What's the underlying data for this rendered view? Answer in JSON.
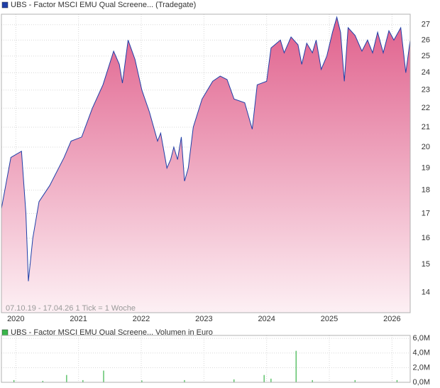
{
  "chart_data": [
    {
      "type": "line",
      "log_scale": true,
      "grid": true,
      "series": [
        {
          "name": "UBS - Factor MSCI EMU Qual Screene... (Tradegate)",
          "color": "#1f3fa8",
          "values": [
            17.2,
            19.5,
            19.8,
            17.0,
            14.4,
            16.0,
            17.5,
            18.2,
            19.5,
            20.3,
            20.5,
            22.0,
            23.3,
            25.3,
            24.5,
            23.4,
            26.0,
            24.8,
            23.0,
            21.8,
            20.3,
            20.7,
            19.0,
            19.4,
            20.0,
            19.4,
            20.5,
            18.4,
            19.0,
            21.0,
            22.5,
            23.5,
            23.8,
            23.6,
            22.5,
            22.3,
            20.9,
            23.3,
            23.5,
            25.5,
            26.0,
            25.2,
            26.2,
            25.7,
            24.5,
            25.8,
            25.2,
            26.0,
            24.2,
            25.0,
            26.5,
            27.5,
            26.5,
            23.5,
            26.8,
            26.3,
            25.3,
            26.0,
            25.2,
            26.5,
            25.2,
            26.6,
            26.0,
            26.8,
            24.0,
            26.0
          ]
        }
      ],
      "x": [
        2019.77,
        2019.92,
        2020.09,
        2020.16,
        2020.2,
        2020.27,
        2020.37,
        2020.54,
        2020.77,
        2020.88,
        2021.05,
        2021.22,
        2021.39,
        2021.56,
        2021.65,
        2021.7,
        2021.79,
        2021.9,
        2022.01,
        2022.13,
        2022.26,
        2022.31,
        2022.41,
        2022.47,
        2022.52,
        2022.58,
        2022.64,
        2022.69,
        2022.75,
        2022.83,
        2022.97,
        2023.14,
        2023.26,
        2023.37,
        2023.48,
        2023.65,
        2023.77,
        2023.85,
        2024.0,
        2024.07,
        2024.22,
        2024.28,
        2024.39,
        2024.5,
        2024.56,
        2024.64,
        2024.73,
        2024.79,
        2024.87,
        2024.96,
        2025.05,
        2025.12,
        2025.18,
        2025.24,
        2025.3,
        2025.41,
        2025.52,
        2025.61,
        2025.69,
        2025.77,
        2025.86,
        2025.95,
        2026.03,
        2026.14,
        2026.22,
        2026.29
      ],
      "xlim": [
        2019.77,
        2026.29
      ],
      "xticks": [
        2020,
        2021,
        2022,
        2023,
        2024,
        2025,
        2026
      ],
      "ylim": [
        13.33,
        27.7
      ],
      "yticks": [
        14,
        15,
        16,
        17,
        18,
        19,
        20,
        21,
        22,
        23,
        24,
        25,
        26,
        27
      ],
      "annotation": "07.10.19 - 17.04.26   1 Tick = 1 Woche"
    },
    {
      "type": "bar",
      "grid": true,
      "series": [
        {
          "name": "UBS - Factor MSCI EMU Qual Screene... Volumen in Euro",
          "color": "#39b54a",
          "values": [
            300000,
            200000,
            1000000,
            300000,
            1600000,
            250000,
            300000,
            400000,
            1000000,
            500000,
            4300000,
            300000,
            300000,
            300000
          ]
        }
      ],
      "x": [
        2019.97,
        2020.43,
        2020.81,
        2021.07,
        2021.4,
        2022.01,
        2022.69,
        2023.48,
        2023.96,
        2024.07,
        2024.47,
        2024.73,
        2025.41,
        2026.08
      ],
      "xlim": [
        2019.77,
        2026.29
      ],
      "ylim": [
        0,
        6400000
      ],
      "yticks": [
        {
          "value": 0,
          "label": "0,0M"
        },
        {
          "value": 2000000,
          "label": "2,0M"
        },
        {
          "value": 4000000,
          "label": "4,0M"
        },
        {
          "value": 6000000,
          "label": "6,0M"
        }
      ]
    }
  ]
}
